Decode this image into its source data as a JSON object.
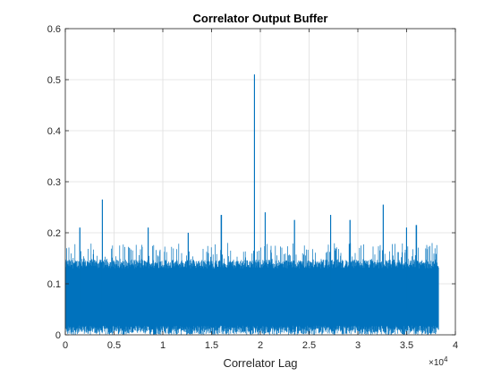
{
  "chart_data": {
    "type": "line",
    "title": "Correlator Output Buffer",
    "xlabel": "Correlator Lag",
    "ylabel": "",
    "x_exponent_label": "×10",
    "x_exponent_power": "4",
    "xlim": [
      0,
      40000
    ],
    "ylim": [
      0,
      0.6
    ],
    "x_ticks": [
      0,
      5000,
      10000,
      15000,
      20000,
      25000,
      30000,
      35000,
      40000
    ],
    "x_tick_labels": [
      "0",
      "0.5",
      "1",
      "1.5",
      "2",
      "2.5",
      "3",
      "3.5",
      "4"
    ],
    "y_ticks": [
      0,
      0.1,
      0.2,
      0.3,
      0.4,
      0.5,
      0.6
    ],
    "y_tick_labels": [
      "0",
      "0.1",
      "0.2",
      "0.3",
      "0.4",
      "0.5",
      "0.6"
    ],
    "grid": true,
    "line_color": "#0072bd",
    "series": [
      {
        "x_start": 0,
        "x_end": 38300,
        "typical_range": [
          0.02,
          0.13
        ],
        "noise_ceiling": 0.18,
        "peaks": [
          {
            "x": 19400,
            "y": 0.51
          },
          {
            "x": 3800,
            "y": 0.265
          },
          {
            "x": 16000,
            "y": 0.235
          },
          {
            "x": 27200,
            "y": 0.235
          },
          {
            "x": 29200,
            "y": 0.225
          },
          {
            "x": 32600,
            "y": 0.255
          },
          {
            "x": 20500,
            "y": 0.24
          },
          {
            "x": 1500,
            "y": 0.21
          },
          {
            "x": 8500,
            "y": 0.21
          },
          {
            "x": 23500,
            "y": 0.225
          },
          {
            "x": 36000,
            "y": 0.215
          },
          {
            "x": 12600,
            "y": 0.2
          },
          {
            "x": 35000,
            "y": 0.21
          }
        ]
      }
    ]
  }
}
